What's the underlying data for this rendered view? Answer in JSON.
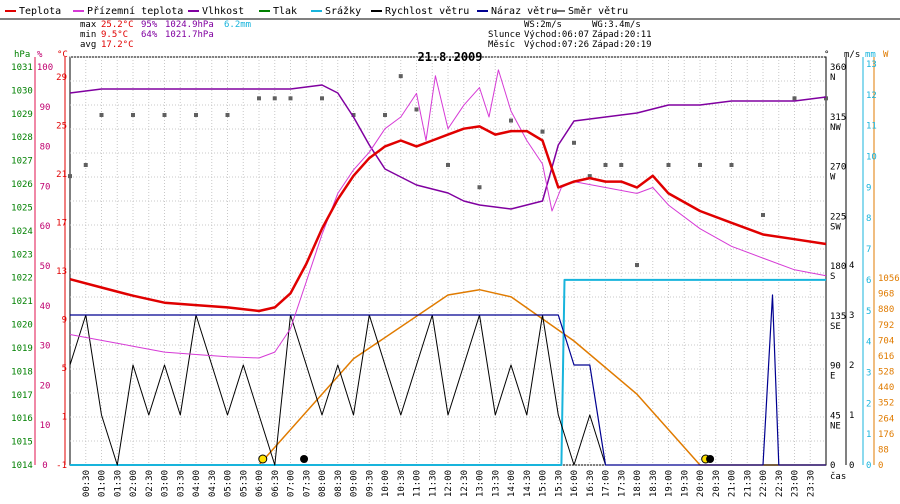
{
  "chart_data": {
    "type": "line",
    "title": "21.8.2009",
    "legend": [
      {
        "label": "Teplota",
        "color": "#e00000"
      },
      {
        "label": "Přízemní teplota",
        "color": "#d63ad6"
      },
      {
        "label": "Vlhkost",
        "color": "#8000a0"
      },
      {
        "label": "Tlak",
        "color": "#008000"
      },
      {
        "label": "Srážky",
        "color": "#18b4dc"
      },
      {
        "label": "Rychlost větru",
        "color": "#000000"
      },
      {
        "label": "Náraz větru",
        "color": "#000090"
      },
      {
        "label": "Směr větru",
        "color": "#707070"
      }
    ],
    "stats": {
      "max": {
        "label": "max",
        "temp": "25.2°C",
        "hum": "95%",
        "press": "1024.9hPa",
        "rain": "6.2mm"
      },
      "min": {
        "label": "min",
        "temp": " 9.5°C",
        "hum": "64%",
        "press": "1021.7hPa"
      },
      "avg": {
        "label": "avg",
        "temp": "17.2°C"
      }
    },
    "ws": "WS:2m/s",
    "wg": "WG:3.4m/s",
    "sun": {
      "label": "Slunce",
      "rise": "Východ:06:07",
      "set": "Západ:20:11"
    },
    "moon": {
      "label": "Měsíc",
      "rise": "Východ:07:26",
      "set": "Západ:20:19"
    },
    "axes": {
      "hpa": {
        "unit": "hPa",
        "ticks": [
          "1031",
          "1030",
          "1029",
          "1028",
          "1027",
          "1026",
          "1025",
          "1024",
          "1023",
          "1022",
          "1021",
          "1020",
          "1019",
          "1018",
          "1017",
          "1016",
          "1015",
          "1014"
        ]
      },
      "pct": {
        "unit": "%",
        "ticks": [
          "100",
          "90",
          "80",
          "70",
          "60",
          "50",
          "40",
          "30",
          "20",
          "10",
          "0"
        ]
      },
      "temp": {
        "unit": "°C",
        "ticks": [
          "29",
          "25",
          "21",
          "17",
          "13",
          "9",
          "5",
          "1",
          "-1"
        ]
      },
      "dir": {
        "unit": "°",
        "ticks": [
          "360",
          "315",
          "270",
          "225",
          "180",
          "135",
          "90",
          "45",
          "0"
        ],
        "compass": [
          "N",
          "NW",
          "W",
          "SW",
          "S",
          "SE",
          "E",
          "NE"
        ]
      },
      "ms": {
        "unit": "m/s",
        "ticks": [
          "4",
          "3",
          "2",
          "1",
          "0"
        ]
      },
      "mm": {
        "unit": "mm",
        "ticks": [
          "13",
          "12",
          "11",
          "10",
          "9",
          "8",
          "7",
          "6",
          "5",
          "4",
          "3",
          "2",
          "1",
          "0"
        ]
      },
      "w": {
        "unit": "W",
        "ticks": [
          "1056",
          "968",
          "880",
          "792",
          "704",
          "616",
          "528",
          "440",
          "352",
          "264",
          "176",
          "88",
          "0"
        ]
      },
      "time_unit": "čas",
      "time_ticks": [
        "00:30",
        "01:00",
        "01:30",
        "02:00",
        "02:30",
        "03:00",
        "03:30",
        "04:00",
        "04:30",
        "05:00",
        "05:30",
        "06:00",
        "06:30",
        "07:00",
        "07:30",
        "08:00",
        "08:30",
        "09:00",
        "09:30",
        "10:00",
        "10:30",
        "11:00",
        "11:30",
        "12:00",
        "12:30",
        "13:00",
        "13:30",
        "14:00",
        "14:30",
        "15:00",
        "15:30",
        "16:00",
        "16:30",
        "17:00",
        "17:30",
        "18:00",
        "18:30",
        "19:00",
        "19:30",
        "20:00",
        "20:30",
        "21:00",
        "21:30",
        "22:00",
        "22:30",
        "23:00",
        "23:30"
      ]
    },
    "x_hours": [
      0,
      24
    ],
    "temperature": [
      [
        0,
        12.2
      ],
      [
        1,
        11.5
      ],
      [
        2,
        10.8
      ],
      [
        3,
        10.2
      ],
      [
        4,
        10.0
      ],
      [
        5,
        9.8
      ],
      [
        6,
        9.5
      ],
      [
        6.5,
        9.8
      ],
      [
        7,
        11.0
      ],
      [
        7.5,
        13.5
      ],
      [
        8,
        16.5
      ],
      [
        8.5,
        19.0
      ],
      [
        9,
        21.0
      ],
      [
        9.5,
        22.5
      ],
      [
        10,
        23.5
      ],
      [
        10.5,
        24.0
      ],
      [
        11,
        23.5
      ],
      [
        11.5,
        24.0
      ],
      [
        12,
        24.5
      ],
      [
        12.5,
        25.0
      ],
      [
        13,
        25.2
      ],
      [
        13.5,
        24.5
      ],
      [
        14,
        24.8
      ],
      [
        14.5,
        24.8
      ],
      [
        15,
        24.0
      ],
      [
        15.5,
        20.0
      ],
      [
        16,
        20.5
      ],
      [
        16.5,
        20.8
      ],
      [
        17,
        20.5
      ],
      [
        17.5,
        20.5
      ],
      [
        18,
        20.0
      ],
      [
        18.5,
        21.0
      ],
      [
        19,
        19.5
      ],
      [
        20,
        18.0
      ],
      [
        21,
        17.0
      ],
      [
        22,
        16.0
      ],
      [
        23,
        15.6
      ],
      [
        24,
        15.2
      ]
    ],
    "ground_temperature": [
      [
        0,
        7.5
      ],
      [
        1,
        7.0
      ],
      [
        2,
        6.5
      ],
      [
        3,
        6.0
      ],
      [
        4,
        5.8
      ],
      [
        5,
        5.6
      ],
      [
        6,
        5.5
      ],
      [
        6.5,
        6.0
      ],
      [
        7,
        8.0
      ],
      [
        7.5,
        12.0
      ],
      [
        8,
        16.0
      ],
      [
        8.5,
        19.5
      ],
      [
        9,
        21.5
      ],
      [
        9.5,
        23.0
      ],
      [
        10,
        25.0
      ],
      [
        10.5,
        26.0
      ],
      [
        11,
        28.0
      ],
      [
        11.3,
        24.0
      ],
      [
        11.6,
        29.5
      ],
      [
        12,
        25.0
      ],
      [
        12.5,
        27.0
      ],
      [
        13,
        28.5
      ],
      [
        13.3,
        26.0
      ],
      [
        13.6,
        30.0
      ],
      [
        14,
        26.5
      ],
      [
        14.5,
        24.0
      ],
      [
        15,
        22.0
      ],
      [
        15.3,
        18.0
      ],
      [
        15.6,
        20.0
      ],
      [
        16,
        20.5
      ],
      [
        17,
        20.0
      ],
      [
        18,
        19.5
      ],
      [
        18.5,
        20.0
      ],
      [
        19,
        18.5
      ],
      [
        20,
        16.5
      ],
      [
        21,
        15.0
      ],
      [
        22,
        14.0
      ],
      [
        23,
        13.0
      ],
      [
        24,
        12.5
      ]
    ],
    "humidity": [
      [
        0,
        93
      ],
      [
        1,
        94
      ],
      [
        2,
        94
      ],
      [
        3,
        94
      ],
      [
        4,
        94
      ],
      [
        5,
        94
      ],
      [
        6,
        94
      ],
      [
        7,
        94
      ],
      [
        8,
        95
      ],
      [
        8.5,
        93
      ],
      [
        9,
        87
      ],
      [
        9.5,
        80
      ],
      [
        10,
        74
      ],
      [
        11,
        70
      ],
      [
        12,
        68
      ],
      [
        12.5,
        66
      ],
      [
        13,
        65
      ],
      [
        14,
        64
      ],
      [
        15,
        66
      ],
      [
        15.5,
        80
      ],
      [
        16,
        86
      ],
      [
        17,
        87
      ],
      [
        18,
        88
      ],
      [
        19,
        90
      ],
      [
        20,
        90
      ],
      [
        21,
        91
      ],
      [
        22,
        91
      ],
      [
        23,
        91
      ],
      [
        24,
        92
      ]
    ],
    "rain_mm": [
      [
        0,
        0
      ],
      [
        15.6,
        0
      ],
      [
        15.7,
        6.0
      ],
      [
        24,
        6.0
      ]
    ],
    "wind_speed": [
      [
        0,
        2
      ],
      [
        0.5,
        3
      ],
      [
        1,
        1
      ],
      [
        1.5,
        0
      ],
      [
        2,
        2
      ],
      [
        2.5,
        1
      ],
      [
        3,
        2
      ],
      [
        3.5,
        1
      ],
      [
        4,
        3
      ],
      [
        4.5,
        2
      ],
      [
        5,
        1
      ],
      [
        5.5,
        2
      ],
      [
        6,
        1
      ],
      [
        6.5,
        0
      ],
      [
        7,
        3
      ],
      [
        7.5,
        2
      ],
      [
        8,
        1
      ],
      [
        8.5,
        2
      ],
      [
        9,
        1
      ],
      [
        9.5,
        3
      ],
      [
        10,
        2
      ],
      [
        10.5,
        1
      ],
      [
        11,
        2
      ],
      [
        11.5,
        3
      ],
      [
        12,
        1
      ],
      [
        12.5,
        2
      ],
      [
        13,
        3
      ],
      [
        13.5,
        1
      ],
      [
        14,
        2
      ],
      [
        14.5,
        1
      ],
      [
        15,
        3
      ],
      [
        15.5,
        1
      ],
      [
        16,
        0
      ],
      [
        16.5,
        1
      ],
      [
        17,
        0
      ],
      [
        18,
        0
      ],
      [
        19,
        0
      ],
      [
        20,
        0
      ],
      [
        21,
        0
      ],
      [
        22,
        0
      ],
      [
        23,
        0
      ],
      [
        24,
        0
      ]
    ],
    "wind_gust": [
      [
        0,
        3
      ],
      [
        1,
        3
      ],
      [
        2,
        3
      ],
      [
        3,
        3
      ],
      [
        4,
        3
      ],
      [
        5,
        3
      ],
      [
        6,
        3
      ],
      [
        7,
        3
      ],
      [
        8,
        3
      ],
      [
        9,
        3
      ],
      [
        10,
        3
      ],
      [
        11,
        3
      ],
      [
        12,
        3
      ],
      [
        13,
        3
      ],
      [
        14,
        3
      ],
      [
        15,
        3
      ],
      [
        15.5,
        3
      ],
      [
        16,
        2
      ],
      [
        16.5,
        2
      ],
      [
        17,
        0
      ],
      [
        18,
        0
      ],
      [
        19,
        0
      ],
      [
        20,
        0
      ],
      [
        21,
        0
      ],
      [
        22,
        0
      ],
      [
        22.3,
        3.4
      ],
      [
        22.5,
        0
      ],
      [
        23,
        0
      ],
      [
        24,
        0
      ]
    ],
    "wind_direction": [
      [
        0,
        260
      ],
      [
        0.5,
        270
      ],
      [
        1,
        315
      ],
      [
        2,
        315
      ],
      [
        3,
        315
      ],
      [
        4,
        315
      ],
      [
        5,
        315
      ],
      [
        6,
        330
      ],
      [
        6.5,
        330
      ],
      [
        7,
        330
      ],
      [
        8,
        330
      ],
      [
        9,
        315
      ],
      [
        10,
        315
      ],
      [
        10.5,
        350
      ],
      [
        11,
        320
      ],
      [
        12,
        270
      ],
      [
        13,
        250
      ],
      [
        14,
        310
      ],
      [
        15,
        300
      ],
      [
        16,
        290
      ],
      [
        16.5,
        260
      ],
      [
        17,
        270
      ],
      [
        17.5,
        270
      ],
      [
        18,
        180
      ],
      [
        19,
        270
      ],
      [
        20,
        270
      ],
      [
        21,
        270
      ],
      [
        22,
        225
      ],
      [
        23,
        330
      ],
      [
        24,
        330
      ]
    ],
    "solar_w": [
      [
        6,
        0
      ],
      [
        9,
        600
      ],
      [
        12,
        960
      ],
      [
        13,
        990
      ],
      [
        14,
        950
      ],
      [
        16,
        700
      ],
      [
        18,
        400
      ],
      [
        20,
        0
      ],
      [
        24,
        0
      ]
    ]
  }
}
